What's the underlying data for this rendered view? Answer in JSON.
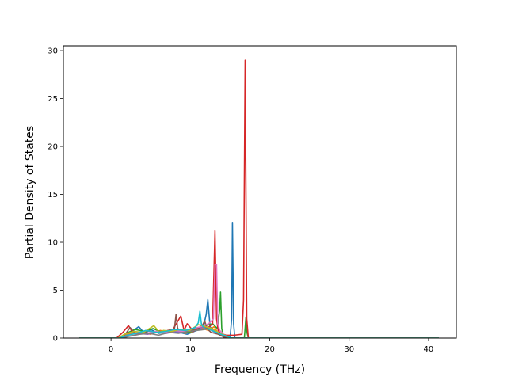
{
  "chart_data": {
    "type": "line",
    "title": "",
    "xlabel": "Frequency (THz)",
    "ylabel": "Partial Density of States",
    "xlim": [
      -6.0,
      43.5
    ],
    "ylim": [
      0,
      30.5
    ],
    "xticks": [
      0,
      10,
      20,
      30,
      40
    ],
    "xtick_labels": [
      "0",
      "10",
      "20",
      "30",
      "40"
    ],
    "yticks": [
      0,
      5,
      10,
      15,
      20,
      25,
      30
    ],
    "ytick_labels": [
      "0",
      "5",
      "10",
      "15",
      "20",
      "25",
      "30"
    ],
    "grid": false,
    "legend": "none",
    "series": [
      {
        "color": "#1f77b4",
        "x": [
          -4.0,
          0.8,
          1.6,
          2.5,
          3.5,
          4.2,
          5.0,
          6.0,
          7.5,
          8.6,
          9.6,
          10.8,
          11.6,
          12.0,
          12.2,
          12.5,
          13.2,
          14.0,
          15.0,
          15.2,
          15.3,
          15.45,
          15.6,
          16.5,
          20.0,
          30.0,
          41.3
        ],
        "y": [
          0,
          0,
          0.25,
          0.6,
          1.2,
          0.5,
          0.9,
          0.5,
          0.7,
          0.6,
          0.4,
          0.8,
          1.0,
          2.5,
          4.0,
          1.0,
          0.5,
          0.3,
          0,
          2.0,
          12.0,
          1.5,
          0,
          0,
          0,
          0,
          0
        ]
      },
      {
        "color": "#ff7f0e",
        "x": [
          -4.0,
          0.9,
          1.8,
          2.6,
          3.8,
          5.0,
          6.2,
          7.2,
          8.2,
          9.3,
          10.3,
          11.2,
          12.3,
          13.0,
          13.5,
          14.0,
          15.0,
          20.0,
          41.3
        ],
        "y": [
          0,
          0,
          0.3,
          0.5,
          0.6,
          0.4,
          0.8,
          0.6,
          0.9,
          0.5,
          0.7,
          1.1,
          0.8,
          1.2,
          0.5,
          0.3,
          0,
          0,
          0
        ]
      },
      {
        "color": "#2ca02c",
        "x": [
          -4.0,
          1.0,
          1.9,
          3.0,
          4.3,
          5.3,
          6.4,
          7.6,
          8.8,
          9.8,
          10.9,
          11.9,
          12.8,
          13.4,
          13.7,
          13.8,
          13.95,
          14.2,
          16.8,
          17.0,
          17.15,
          17.3,
          20.0,
          41.3
        ],
        "y": [
          0,
          0,
          0.5,
          0.9,
          0.7,
          1.0,
          0.6,
          0.9,
          0.8,
          0.6,
          1.0,
          1.3,
          1.5,
          1.0,
          3.0,
          4.8,
          1.0,
          0,
          0,
          2.2,
          0.5,
          0,
          0,
          0
        ]
      },
      {
        "color": "#d62728",
        "x": [
          -4.0,
          0.7,
          1.5,
          2.2,
          2.8,
          3.6,
          4.4,
          5.5,
          6.6,
          7.8,
          8.8,
          9.2,
          9.6,
          10.4,
          11.3,
          12.1,
          12.8,
          13.1,
          13.3,
          13.5,
          13.8,
          14.5,
          15.5,
          16.5,
          16.7,
          16.9,
          17.1,
          17.3,
          18.0,
          30.0,
          41.3
        ],
        "y": [
          0,
          0,
          0.6,
          1.3,
          0.5,
          0.4,
          0.8,
          0.6,
          0.7,
          0.9,
          2.3,
          0.8,
          1.5,
          0.7,
          1.2,
          1.0,
          1.5,
          11.2,
          2.0,
          0.8,
          0.5,
          0.3,
          0.3,
          0.4,
          4.0,
          29.0,
          2.0,
          0,
          0,
          0,
          0
        ]
      },
      {
        "color": "#9467bd",
        "x": [
          -4.0,
          1.1,
          2.0,
          3.3,
          4.6,
          5.8,
          7.0,
          8.1,
          9.0,
          10.1,
          11.1,
          12.0,
          12.7,
          13.3,
          14.0,
          15.0,
          41.3
        ],
        "y": [
          0,
          0,
          0.3,
          0.5,
          0.4,
          0.6,
          0.5,
          0.7,
          0.6,
          0.9,
          1.0,
          1.2,
          0.8,
          0.5,
          0.2,
          0,
          0
        ]
      },
      {
        "color": "#8c564b",
        "x": [
          -4.0,
          1.0,
          1.8,
          2.4,
          3.0,
          4.0,
          5.2,
          6.3,
          7.4,
          8.0,
          8.2,
          8.4,
          9.0,
          10.0,
          11.0,
          11.5,
          11.8,
          12.1,
          12.6,
          13.5,
          14.5,
          41.3
        ],
        "y": [
          0,
          0,
          0.4,
          1.1,
          0.5,
          0.6,
          0.5,
          0.7,
          0.6,
          1.0,
          2.5,
          1.0,
          0.7,
          0.8,
          1.0,
          1.3,
          1.8,
          1.0,
          0.6,
          0.4,
          0,
          0
        ]
      },
      {
        "color": "#e377c2",
        "x": [
          -4.0,
          1.2,
          2.2,
          3.4,
          4.5,
          5.6,
          6.8,
          8.0,
          9.2,
          10.3,
          11.4,
          12.3,
          12.9,
          13.1,
          13.3,
          13.45,
          13.7,
          14.3,
          15.0,
          41.3
        ],
        "y": [
          0,
          0,
          0.3,
          0.6,
          0.5,
          0.7,
          0.6,
          0.8,
          0.7,
          1.0,
          1.2,
          1.5,
          2.0,
          7.7,
          7.7,
          1.5,
          0.8,
          0.3,
          0,
          0
        ]
      },
      {
        "color": "#7f7f7f",
        "x": [
          -4.0,
          1.3,
          2.4,
          3.6,
          4.8,
          6.0,
          7.3,
          8.5,
          9.7,
          10.8,
          11.8,
          12.6,
          13.4,
          14.2,
          15.0,
          41.3
        ],
        "y": [
          0,
          0,
          0.2,
          0.4,
          0.5,
          0.3,
          0.6,
          0.5,
          0.7,
          0.8,
          0.9,
          1.1,
          0.6,
          0.3,
          0,
          0
        ]
      },
      {
        "color": "#bcbd22",
        "x": [
          -4.0,
          0.9,
          1.7,
          2.9,
          4.1,
          5.4,
          6.1,
          6.6,
          7.7,
          8.7,
          9.9,
          11.0,
          11.9,
          12.7,
          13.5,
          14.3,
          15.0,
          41.3
        ],
        "y": [
          0,
          0,
          0.4,
          0.7,
          0.6,
          1.3,
          0.6,
          0.8,
          0.7,
          0.9,
          0.8,
          1.4,
          1.2,
          1.0,
          0.6,
          0.3,
          0,
          0
        ]
      },
      {
        "color": "#17becf",
        "x": [
          -4.0,
          1.1,
          2.1,
          3.2,
          4.4,
          5.7,
          6.9,
          8.0,
          9.4,
          10.6,
          11.0,
          11.2,
          11.4,
          11.8,
          12.4,
          13.0,
          13.8,
          14.6,
          15.2,
          41.3
        ],
        "y": [
          0,
          0,
          0.3,
          0.5,
          0.8,
          0.6,
          0.7,
          0.9,
          0.8,
          1.1,
          1.6,
          2.8,
          1.4,
          1.0,
          0.9,
          0.7,
          0.4,
          0.2,
          0,
          0
        ]
      }
    ]
  }
}
